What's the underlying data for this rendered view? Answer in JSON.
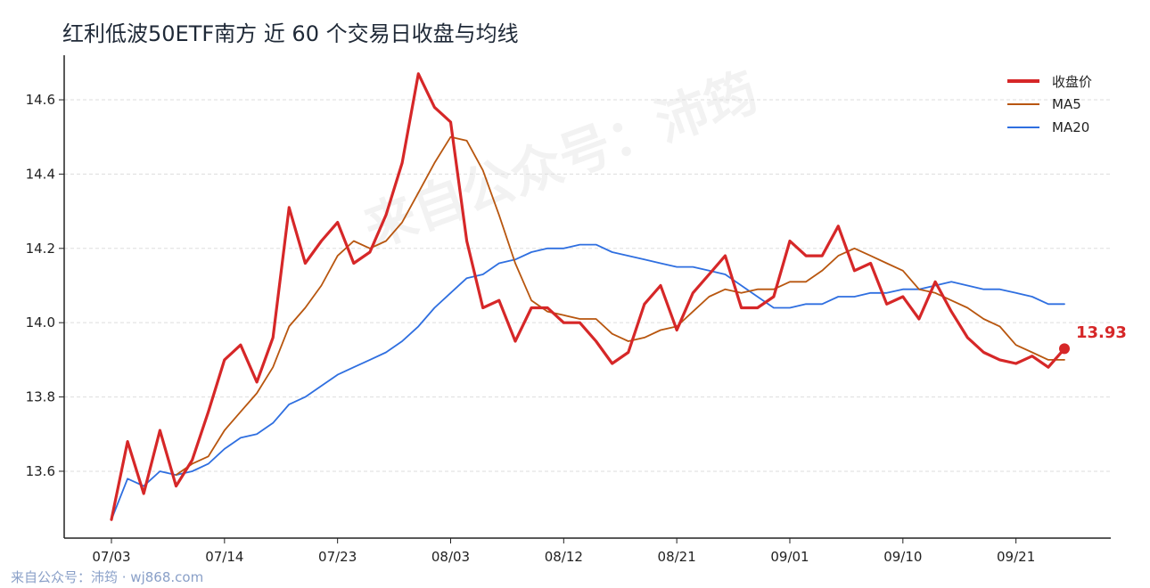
{
  "title": "红利低波50ETF南方 近 60 个交易日收盘与均线",
  "watermark": "来自公众号：沛筠",
  "footer": "来自公众号：沛筠 · wj868.com",
  "last_value_label": "13.93",
  "colors": {
    "close": "#d62728",
    "ma5": "#b8560f",
    "ma20": "#2f6fe0",
    "axis": "#222222",
    "grid": "#dddddd"
  },
  "chart_data": {
    "type": "line",
    "title": "红利低波50ETF南方 近 60 个交易日收盘与均线",
    "xlabel": "",
    "ylabel": "",
    "ylim": [
      13.42,
      14.72
    ],
    "yticks": [
      "13.6",
      "13.8",
      "14.0",
      "14.2",
      "14.4",
      "14.6"
    ],
    "xtick_labels": [
      "07/03",
      "07/14",
      "07/23",
      "08/03",
      "08/12",
      "08/21",
      "09/01",
      "09/10",
      "09/21"
    ],
    "xtick_index": [
      0,
      7,
      14,
      21,
      28,
      35,
      42,
      49,
      56
    ],
    "grid": "horizontal dashed",
    "legend_placement": "top-right",
    "x": [
      "07/03",
      "07/04",
      "07/07",
      "07/08",
      "07/09",
      "07/10",
      "07/11",
      "07/14",
      "07/15",
      "07/16",
      "07/17",
      "07/18",
      "07/21",
      "07/22",
      "07/23",
      "07/24",
      "07/25",
      "07/28",
      "07/29",
      "07/30",
      "07/31",
      "08/01",
      "08/04",
      "08/05",
      "08/06",
      "08/07",
      "08/08",
      "08/11",
      "08/12",
      "08/13",
      "08/14",
      "08/15",
      "08/18",
      "08/19",
      "08/20",
      "08/21",
      "08/22",
      "08/25",
      "08/26",
      "08/27",
      "08/28",
      "08/29",
      "09/01",
      "09/02",
      "09/03",
      "09/04",
      "09/05",
      "09/08",
      "09/09",
      "09/10",
      "09/11",
      "09/12",
      "09/15",
      "09/16",
      "09/17",
      "09/18",
      "09/19",
      "09/22",
      "09/23",
      "09/24"
    ],
    "series": [
      {
        "name": "收盘价",
        "values": [
          13.47,
          13.68,
          13.54,
          13.71,
          13.56,
          13.63,
          13.76,
          13.9,
          13.94,
          13.84,
          13.96,
          14.31,
          14.16,
          14.22,
          14.27,
          14.16,
          14.19,
          14.29,
          14.43,
          14.67,
          14.58,
          14.54,
          14.22,
          14.04,
          14.06,
          13.95,
          14.04,
          14.04,
          14.0,
          14.0,
          13.95,
          13.89,
          13.92,
          14.05,
          14.1,
          13.98,
          14.08,
          14.13,
          14.18,
          14.04,
          14.04,
          14.07,
          14.22,
          14.18,
          14.18,
          14.26,
          14.14,
          14.16,
          14.05,
          14.07,
          14.01,
          14.11,
          14.03,
          13.96,
          13.92,
          13.9,
          13.89,
          13.91,
          13.88,
          13.93
        ]
      },
      {
        "name": "MA5",
        "values": [
          null,
          null,
          null,
          null,
          13.59,
          13.62,
          13.64,
          13.71,
          13.76,
          13.81,
          13.88,
          13.99,
          14.04,
          14.1,
          14.18,
          14.22,
          14.2,
          14.22,
          14.27,
          14.35,
          14.43,
          14.5,
          14.49,
          14.41,
          14.29,
          14.16,
          14.06,
          14.03,
          14.02,
          14.01,
          14.01,
          13.97,
          13.95,
          13.96,
          13.98,
          13.99,
          14.03,
          14.07,
          14.09,
          14.08,
          14.09,
          14.09,
          14.11,
          14.11,
          14.14,
          14.18,
          14.2,
          14.18,
          14.16,
          14.14,
          14.09,
          14.08,
          14.06,
          14.04,
          14.01,
          13.99,
          13.94,
          13.92,
          13.9,
          13.9
        ]
      },
      {
        "name": "MA20",
        "values": [
          13.47,
          13.58,
          13.56,
          13.6,
          13.59,
          13.6,
          13.62,
          13.66,
          13.69,
          13.7,
          13.73,
          13.78,
          13.8,
          13.83,
          13.86,
          13.88,
          13.9,
          13.92,
          13.95,
          13.99,
          14.04,
          14.08,
          14.12,
          14.13,
          14.16,
          14.17,
          14.19,
          14.2,
          14.2,
          14.21,
          14.21,
          14.19,
          14.18,
          14.17,
          14.16,
          14.15,
          14.15,
          14.14,
          14.13,
          14.1,
          14.07,
          14.04,
          14.04,
          14.05,
          14.05,
          14.07,
          14.07,
          14.08,
          14.08,
          14.09,
          14.09,
          14.1,
          14.11,
          14.1,
          14.09,
          14.09,
          14.08,
          14.07,
          14.05,
          14.05
        ]
      }
    ]
  }
}
